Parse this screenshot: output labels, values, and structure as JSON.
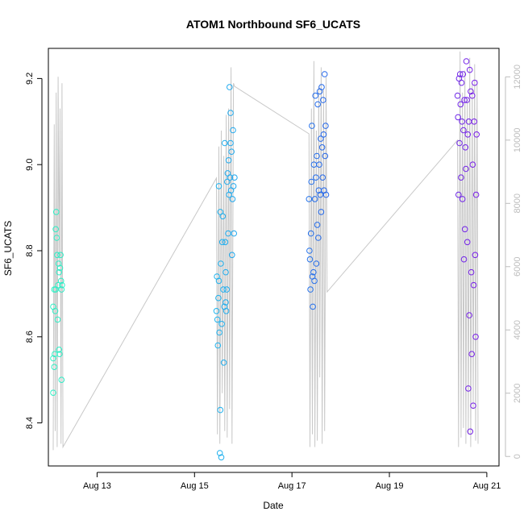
{
  "chart_data": {
    "type": "scatter",
    "title": "ATOM1 Northbound SF6_UCATS",
    "xlabel": "Date",
    "ylabel": "SF6_UCATS",
    "x_ticks": [
      "Aug 13",
      "Aug 15",
      "Aug 17",
      "Aug 19",
      "Aug 21"
    ],
    "x_tick_values": [
      13,
      15,
      17,
      19,
      21
    ],
    "xlim": [
      12.0,
      21.25
    ],
    "ylim": [
      8.3,
      9.27
    ],
    "y_ticks": [
      8.4,
      8.6,
      8.8,
      9.0,
      9.2
    ],
    "y_tick_labels": [
      "8.4",
      "8.6",
      "8.8",
      "9.0",
      "9.2"
    ],
    "y2lim": [
      -300,
      12900
    ],
    "y2_ticks": [
      0,
      2000,
      4000,
      6000,
      8000,
      10000,
      12000
    ],
    "y2_tick_labels": [
      "0",
      "2000",
      "4000",
      "6000",
      "8000",
      "10000",
      "12000"
    ],
    "grid": false,
    "colors": {
      "marker_start": "#2ef0c4",
      "marker_mid1": "#1ec3ef",
      "marker_mid2": "#2660ea",
      "marker_end": "#7a1fe8",
      "altitude_line": "#c8c8c8",
      "right_axis": "#bdbdbd"
    },
    "series": [
      {
        "x": [
          12.1,
          12.1,
          12.1,
          12.12,
          12.12,
          12.13,
          12.14,
          12.15,
          12.15,
          12.16,
          12.17,
          12.18,
          12.19,
          12.2,
          12.21,
          12.22,
          12.22,
          12.23,
          12.24,
          12.25,
          12.26,
          12.27,
          12.27,
          12.28
        ],
        "y": [
          8.67,
          8.55,
          8.47,
          8.71,
          8.53,
          8.56,
          8.66,
          8.71,
          8.85,
          8.89,
          8.83,
          8.79,
          8.64,
          8.72,
          8.77,
          8.75,
          8.57,
          8.56,
          8.76,
          8.79,
          8.73,
          8.71,
          8.5,
          8.72
        ]
      },
      {
        "x": [
          15.45,
          15.46,
          15.47,
          15.48,
          15.49,
          15.5,
          15.5,
          15.51,
          15.52,
          15.53,
          15.53,
          15.54,
          15.55,
          15.56,
          15.57,
          15.58,
          15.59,
          15.6,
          15.61,
          15.62,
          15.63,
          15.64,
          15.64,
          15.65,
          15.66,
          15.67,
          15.68,
          15.69,
          15.7,
          15.71,
          15.72,
          15.73,
          15.74,
          15.74,
          15.75,
          15.76,
          15.77,
          15.78,
          15.79,
          15.8,
          15.81,
          15.82
        ],
        "y": [
          8.66,
          8.74,
          8.64,
          8.58,
          8.69,
          8.95,
          8.73,
          8.61,
          8.33,
          8.43,
          8.89,
          8.77,
          8.32,
          8.63,
          8.82,
          8.88,
          8.71,
          8.54,
          8.67,
          9.05,
          8.82,
          8.75,
          8.68,
          8.66,
          8.71,
          8.96,
          8.98,
          8.84,
          9.01,
          8.93,
          9.18,
          8.97,
          9.12,
          9.05,
          8.94,
          9.03,
          8.79,
          8.92,
          9.08,
          8.95,
          8.84,
          8.97
        ]
      },
      {
        "x": [
          17.35,
          17.36,
          17.37,
          17.38,
          17.39,
          17.4,
          17.41,
          17.42,
          17.43,
          17.44,
          17.45,
          17.46,
          17.47,
          17.48,
          17.49,
          17.5,
          17.51,
          17.52,
          17.53,
          17.54,
          17.55,
          17.56,
          17.57,
          17.58,
          17.59,
          17.6,
          17.61,
          17.62,
          17.63,
          17.64,
          17.65,
          17.66,
          17.67,
          17.68,
          17.69,
          17.7
        ],
        "y": [
          8.92,
          8.8,
          8.78,
          8.71,
          8.84,
          8.96,
          9.09,
          8.74,
          8.67,
          8.75,
          9.0,
          8.73,
          8.92,
          9.16,
          8.97,
          8.77,
          9.02,
          8.86,
          9.14,
          8.83,
          8.94,
          9.0,
          9.17,
          8.93,
          9.06,
          8.89,
          9.18,
          9.04,
          8.97,
          9.15,
          9.07,
          8.94,
          9.21,
          9.02,
          9.09,
          8.93
        ]
      },
      {
        "x": [
          20.4,
          20.41,
          20.42,
          20.43,
          20.44,
          20.45,
          20.46,
          20.47,
          20.48,
          20.49,
          20.5,
          20.51,
          20.52,
          20.53,
          20.54,
          20.55,
          20.56,
          20.57,
          20.58,
          20.59,
          20.6,
          20.61,
          20.62,
          20.63,
          20.64,
          20.65,
          20.66,
          20.67,
          20.68,
          20.69,
          20.7,
          20.71,
          20.72,
          20.73,
          20.74,
          20.75,
          20.76,
          20.77,
          20.78,
          20.79
        ],
        "y": [
          9.16,
          9.11,
          8.93,
          9.2,
          9.05,
          9.21,
          9.14,
          8.97,
          9.19,
          9.1,
          8.92,
          9.21,
          9.08,
          8.78,
          9.15,
          8.85,
          9.04,
          8.99,
          9.24,
          9.15,
          8.82,
          9.07,
          8.48,
          9.1,
          8.65,
          9.22,
          8.38,
          9.17,
          8.75,
          8.56,
          9.16,
          9.0,
          8.44,
          8.72,
          9.1,
          9.19,
          8.79,
          8.6,
          8.93,
          9.07
        ]
      }
    ],
    "altitude_series": {
      "x": [
        12.1,
        12.12,
        12.14,
        12.16,
        12.18,
        12.2,
        12.22,
        12.24,
        12.26,
        12.28,
        12.3,
        15.45,
        15.47,
        15.5,
        15.52,
        15.55,
        15.57,
        15.6,
        15.62,
        15.65,
        15.67,
        15.7,
        15.72,
        15.75,
        15.77,
        15.8,
        15.82,
        17.35,
        17.37,
        17.4,
        17.42,
        17.45,
        17.47,
        17.5,
        17.52,
        17.55,
        17.57,
        17.6,
        17.62,
        17.65,
        17.67,
        17.7,
        17.72,
        20.4,
        20.42,
        20.45,
        20.47,
        20.5,
        20.52,
        20.55,
        20.57,
        20.6,
        20.62,
        20.65,
        20.67,
        20.7,
        20.72,
        20.75,
        20.77,
        20.8,
        20.82
      ],
      "y": [
        200,
        10500,
        800,
        11500,
        300,
        12000,
        6000,
        11000,
        400,
        11800,
        300,
        8800,
        700,
        9800,
        400,
        10300,
        2000,
        9500,
        800,
        10800,
        600,
        11000,
        1500,
        12300,
        400,
        11800,
        11700,
        10200,
        300,
        11000,
        700,
        12500,
        300,
        10300,
        500,
        11700,
        2500,
        12300,
        400,
        11600,
        800,
        12000,
        5200,
        10000,
        300,
        12800,
        600,
        11500,
        900,
        12200,
        400,
        11300,
        700,
        12600,
        300,
        11800,
        1500,
        12400,
        500,
        11900,
        400
      ]
    }
  }
}
